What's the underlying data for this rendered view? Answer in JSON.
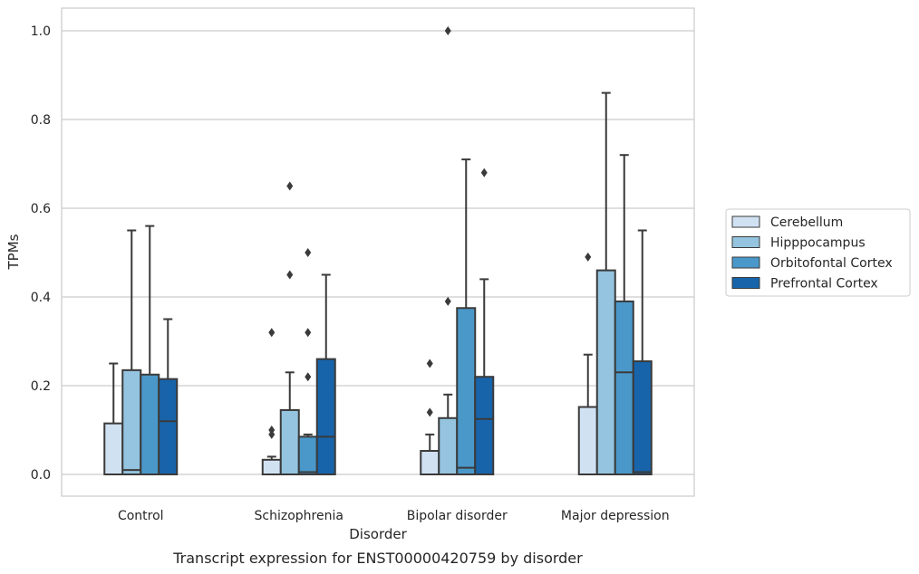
{
  "chart_data": {
    "type": "box",
    "caption": "Transcript expression for ENST00000420759 by disorder",
    "xlabel": "Disorder",
    "ylabel": "TPMs",
    "ylim": [
      -0.05,
      1.05
    ],
    "yticks": [
      0.0,
      0.2,
      0.4,
      0.6,
      0.8,
      1.0
    ],
    "ytick_labels": [
      "0.0",
      "0.2",
      "0.4",
      "0.6",
      "0.8",
      "1.0"
    ],
    "grid": "horizontal",
    "legend_position": "right",
    "categories": [
      "Control",
      "Schizophrenia",
      "Bipolar disorder",
      "Major depression"
    ],
    "series": [
      {
        "name": "Cerebellum",
        "color": "#d0e1f2",
        "boxes": [
          {
            "q1": 0.0,
            "median": 0.0,
            "q3": 0.115,
            "whisker_low": 0.0,
            "whisker_high": 0.25,
            "outliers": []
          },
          {
            "q1": 0.0,
            "median": 0.0,
            "q3": 0.033,
            "whisker_low": 0.0,
            "whisker_high": 0.04,
            "outliers": [
              0.09,
              0.1,
              0.32
            ]
          },
          {
            "q1": 0.0,
            "median": 0.0,
            "q3": 0.053,
            "whisker_low": 0.0,
            "whisker_high": 0.09,
            "outliers": [
              0.14,
              0.25
            ]
          },
          {
            "q1": 0.0,
            "median": 0.0,
            "q3": 0.152,
            "whisker_low": 0.0,
            "whisker_high": 0.27,
            "outliers": [
              0.49
            ]
          }
        ]
      },
      {
        "name": "Hipppocampus",
        "color": "#94c4df",
        "boxes": [
          {
            "q1": 0.0,
            "median": 0.01,
            "q3": 0.235,
            "whisker_low": 0.0,
            "whisker_high": 0.55,
            "outliers": []
          },
          {
            "q1": 0.0,
            "median": 0.0,
            "q3": 0.145,
            "whisker_low": 0.0,
            "whisker_high": 0.23,
            "outliers": [
              0.45,
              0.65
            ]
          },
          {
            "q1": 0.0,
            "median": 0.0,
            "q3": 0.127,
            "whisker_low": 0.0,
            "whisker_high": 0.18,
            "outliers": [
              0.39,
              1.0
            ]
          },
          {
            "q1": 0.0,
            "median": 0.0,
            "q3": 0.46,
            "whisker_low": 0.0,
            "whisker_high": 0.86,
            "outliers": []
          }
        ]
      },
      {
        "name": "Orbitofontal Cortex",
        "color": "#4a98c9",
        "boxes": [
          {
            "q1": 0.0,
            "median": 0.0,
            "q3": 0.225,
            "whisker_low": 0.0,
            "whisker_high": 0.56,
            "outliers": []
          },
          {
            "q1": 0.0,
            "median": 0.005,
            "q3": 0.085,
            "whisker_low": 0.0,
            "whisker_high": 0.09,
            "outliers": [
              0.22,
              0.32,
              0.5
            ]
          },
          {
            "q1": 0.0,
            "median": 0.015,
            "q3": 0.375,
            "whisker_low": 0.0,
            "whisker_high": 0.71,
            "outliers": []
          },
          {
            "q1": 0.0,
            "median": 0.23,
            "q3": 0.39,
            "whisker_low": 0.0,
            "whisker_high": 0.72,
            "outliers": []
          }
        ]
      },
      {
        "name": "Prefrontal Cortex",
        "color": "#1764ab",
        "boxes": [
          {
            "q1": 0.0,
            "median": 0.12,
            "q3": 0.215,
            "whisker_low": 0.0,
            "whisker_high": 0.35,
            "outliers": []
          },
          {
            "q1": 0.0,
            "median": 0.085,
            "q3": 0.26,
            "whisker_low": 0.0,
            "whisker_high": 0.45,
            "outliers": []
          },
          {
            "q1": 0.0,
            "median": 0.125,
            "q3": 0.22,
            "whisker_low": 0.0,
            "whisker_high": 0.44,
            "outliers": [
              0.68
            ]
          },
          {
            "q1": 0.0,
            "median": 0.005,
            "q3": 0.255,
            "whisker_low": 0.0,
            "whisker_high": 0.55,
            "outliers": []
          }
        ]
      }
    ]
  }
}
